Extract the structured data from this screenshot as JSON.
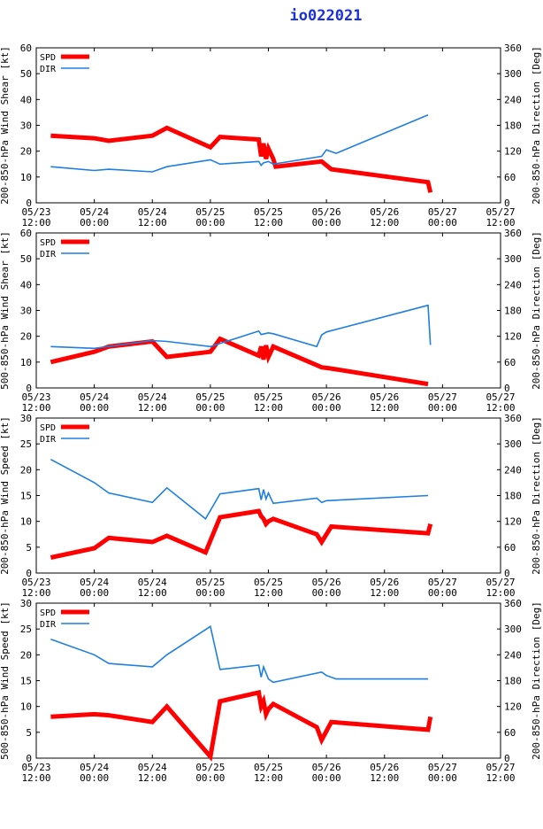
{
  "title": "io022021",
  "colors": {
    "spd": "#ff0000",
    "dir": "#1e7fe0",
    "title": "#1a2fe0"
  },
  "chart_data": [
    {
      "type": "line",
      "ylabel_left": "200-850-hPa Wind Shear [kt]",
      "ylabel_right": "200-850-hPa Direction [Deg]",
      "ylim_left": [
        0,
        60
      ],
      "yticks_left": [
        0,
        10,
        20,
        30,
        40,
        50,
        60
      ],
      "ylim_right": [
        0,
        360
      ],
      "yticks_right": [
        0,
        60,
        120,
        180,
        240,
        300,
        360
      ],
      "xlim": [
        0,
        96
      ],
      "x_ticks": [
        {
          "top": "05/23",
          "bottom": "12:00"
        },
        {
          "top": "05/24",
          "bottom": "00:00"
        },
        {
          "top": "05/24",
          "bottom": "12:00"
        },
        {
          "top": "05/25",
          "bottom": "00:00"
        },
        {
          "top": "05/25",
          "bottom": "12:00"
        },
        {
          "top": "05/26",
          "bottom": "00:00"
        },
        {
          "top": "05/26",
          "bottom": "12:00"
        },
        {
          "top": "05/27",
          "bottom": "00:00"
        },
        {
          "top": "05/27",
          "bottom": "12:00"
        }
      ],
      "series": [
        {
          "name": "SPD",
          "axis": "left",
          "x": [
            3,
            12,
            15,
            24,
            27,
            36,
            38,
            46,
            46.5,
            47,
            47.5,
            48,
            49,
            49.5,
            59,
            61,
            81,
            81.5
          ],
          "y": [
            26,
            25,
            24,
            26,
            29,
            21.5,
            25.5,
            24.5,
            18,
            23,
            17,
            21,
            17,
            14,
            16,
            13,
            8,
            4
          ]
        },
        {
          "name": "DIR",
          "axis": "right",
          "x": [
            3,
            12,
            15,
            24,
            27,
            36,
            38,
            46,
            46.5,
            47,
            48,
            49,
            59,
            60,
            62,
            81
          ],
          "y": [
            84,
            75,
            78,
            72,
            84,
            100,
            90,
            96,
            87,
            93,
            96,
            90,
            108,
            123,
            115,
            204
          ]
        }
      ]
    },
    {
      "type": "line",
      "ylabel_left": "500-850-hPa Wind Shear [kt]",
      "ylabel_right": "200-850-hPa Direction [Deg]",
      "ylim_left": [
        0,
        60
      ],
      "yticks_left": [
        0,
        10,
        20,
        30,
        40,
        50,
        60
      ],
      "ylim_right": [
        0,
        360
      ],
      "yticks_right": [
        0,
        60,
        120,
        180,
        240,
        300,
        360
      ],
      "xlim": [
        0,
        96
      ],
      "x_ticks": [
        {
          "top": "05/23",
          "bottom": "12:00"
        },
        {
          "top": "05/24",
          "bottom": "00:00"
        },
        {
          "top": "05/24",
          "bottom": "12:00"
        },
        {
          "top": "05/25",
          "bottom": "00:00"
        },
        {
          "top": "05/25",
          "bottom": "12:00"
        },
        {
          "top": "05/26",
          "bottom": "00:00"
        },
        {
          "top": "05/26",
          "bottom": "12:00"
        },
        {
          "top": "05/27",
          "bottom": "00:00"
        },
        {
          "top": "05/27",
          "bottom": "12:00"
        }
      ],
      "series": [
        {
          "name": "SPD",
          "axis": "left",
          "x": [
            3,
            12,
            15,
            24,
            27,
            36,
            38,
            46,
            46.5,
            47,
            47.5,
            48,
            49,
            59,
            61,
            81
          ],
          "y": [
            10,
            14,
            16,
            18,
            12,
            14,
            19,
            12.5,
            16,
            11,
            16.5,
            12,
            16,
            8,
            7.5,
            1.5
          ]
        },
        {
          "name": "DIR",
          "axis": "right",
          "x": [
            3,
            12,
            24,
            27,
            36,
            46,
            46.5,
            48,
            49,
            58,
            59,
            60,
            81,
            81.5
          ],
          "y": [
            96,
            92,
            110,
            108,
            96,
            132,
            124,
            128,
            126,
            96,
            123,
            130,
            192,
            100
          ]
        }
      ]
    },
    {
      "type": "line",
      "ylabel_left": "200-850-hPa Wind Speed [kt]",
      "ylabel_right": "200-850-hPa Direction [Deg]",
      "ylim_left": [
        0,
        30
      ],
      "yticks_left": [
        0,
        5,
        10,
        15,
        20,
        25,
        30
      ],
      "ylim_right": [
        0,
        360
      ],
      "yticks_right": [
        0,
        60,
        120,
        180,
        240,
        300,
        360
      ],
      "xlim": [
        0,
        96
      ],
      "x_ticks": [
        {
          "top": "05/23",
          "bottom": "12:00"
        },
        {
          "top": "05/24",
          "bottom": "00:00"
        },
        {
          "top": "05/24",
          "bottom": "12:00"
        },
        {
          "top": "05/25",
          "bottom": "00:00"
        },
        {
          "top": "05/25",
          "bottom": "12:00"
        },
        {
          "top": "05/26",
          "bottom": "00:00"
        },
        {
          "top": "05/26",
          "bottom": "12:00"
        },
        {
          "top": "05/27",
          "bottom": "00:00"
        },
        {
          "top": "05/27",
          "bottom": "12:00"
        }
      ],
      "series": [
        {
          "name": "SPD",
          "axis": "left",
          "x": [
            3,
            12,
            15,
            24,
            27,
            35,
            38,
            46,
            46.5,
            47,
            47.5,
            48,
            49,
            58,
            59,
            61,
            81,
            81.5
          ],
          "y": [
            3,
            4.8,
            6.8,
            6,
            7.2,
            4,
            10.8,
            12,
            11,
            10.5,
            9.5,
            10,
            10.5,
            7.5,
            6,
            9,
            7.7,
            9.5
          ]
        },
        {
          "name": "DIR",
          "axis": "right",
          "x": [
            3,
            12,
            15,
            24,
            27,
            35,
            38,
            46,
            46.5,
            47,
            47.5,
            48,
            49,
            58,
            59,
            60,
            81
          ],
          "y": [
            264,
            210,
            186,
            164,
            198,
            126,
            184,
            196,
            170,
            194,
            172,
            186,
            162,
            174,
            164,
            168,
            180
          ]
        }
      ]
    },
    {
      "type": "line",
      "ylabel_left": "500-850-hPa Wind Speed [kt]",
      "ylabel_right": "200-850-hPa Direction [Deg]",
      "ylim_left": [
        0,
        30
      ],
      "yticks_left": [
        0,
        5,
        10,
        15,
        20,
        25,
        30
      ],
      "ylim_right": [
        0,
        360
      ],
      "yticks_right": [
        0,
        60,
        120,
        180,
        240,
        300,
        360
      ],
      "xlim": [
        0,
        96
      ],
      "x_ticks": [
        {
          "top": "05/23",
          "bottom": "12:00"
        },
        {
          "top": "05/24",
          "bottom": "00:00"
        },
        {
          "top": "05/24",
          "bottom": "12:00"
        },
        {
          "top": "05/25",
          "bottom": "00:00"
        },
        {
          "top": "05/25",
          "bottom": "12:00"
        },
        {
          "top": "05/26",
          "bottom": "00:00"
        },
        {
          "top": "05/26",
          "bottom": "12:00"
        },
        {
          "top": "05/27",
          "bottom": "00:00"
        },
        {
          "top": "05/27",
          "bottom": "12:00"
        }
      ],
      "series": [
        {
          "name": "SPD",
          "axis": "left",
          "x": [
            3,
            12,
            15,
            24,
            27,
            36,
            38,
            46,
            46.5,
            47,
            47.5,
            48,
            49,
            58,
            59,
            61,
            81,
            81.5
          ],
          "y": [
            8,
            8.5,
            8.3,
            7,
            10,
            0.3,
            11,
            12.7,
            10,
            11,
            8.5,
            9.5,
            10.5,
            6,
            3.5,
            7,
            5.5,
            8
          ]
        },
        {
          "name": "DIR",
          "axis": "right",
          "x": [
            3,
            12,
            15,
            24,
            27,
            36,
            38,
            46,
            46.5,
            47,
            48,
            49,
            59,
            60,
            62,
            81
          ],
          "y": [
            276,
            240,
            220,
            212,
            240,
            306,
            206,
            216,
            188,
            212,
            184,
            176,
            200,
            192,
            184,
            184
          ]
        }
      ]
    }
  ]
}
